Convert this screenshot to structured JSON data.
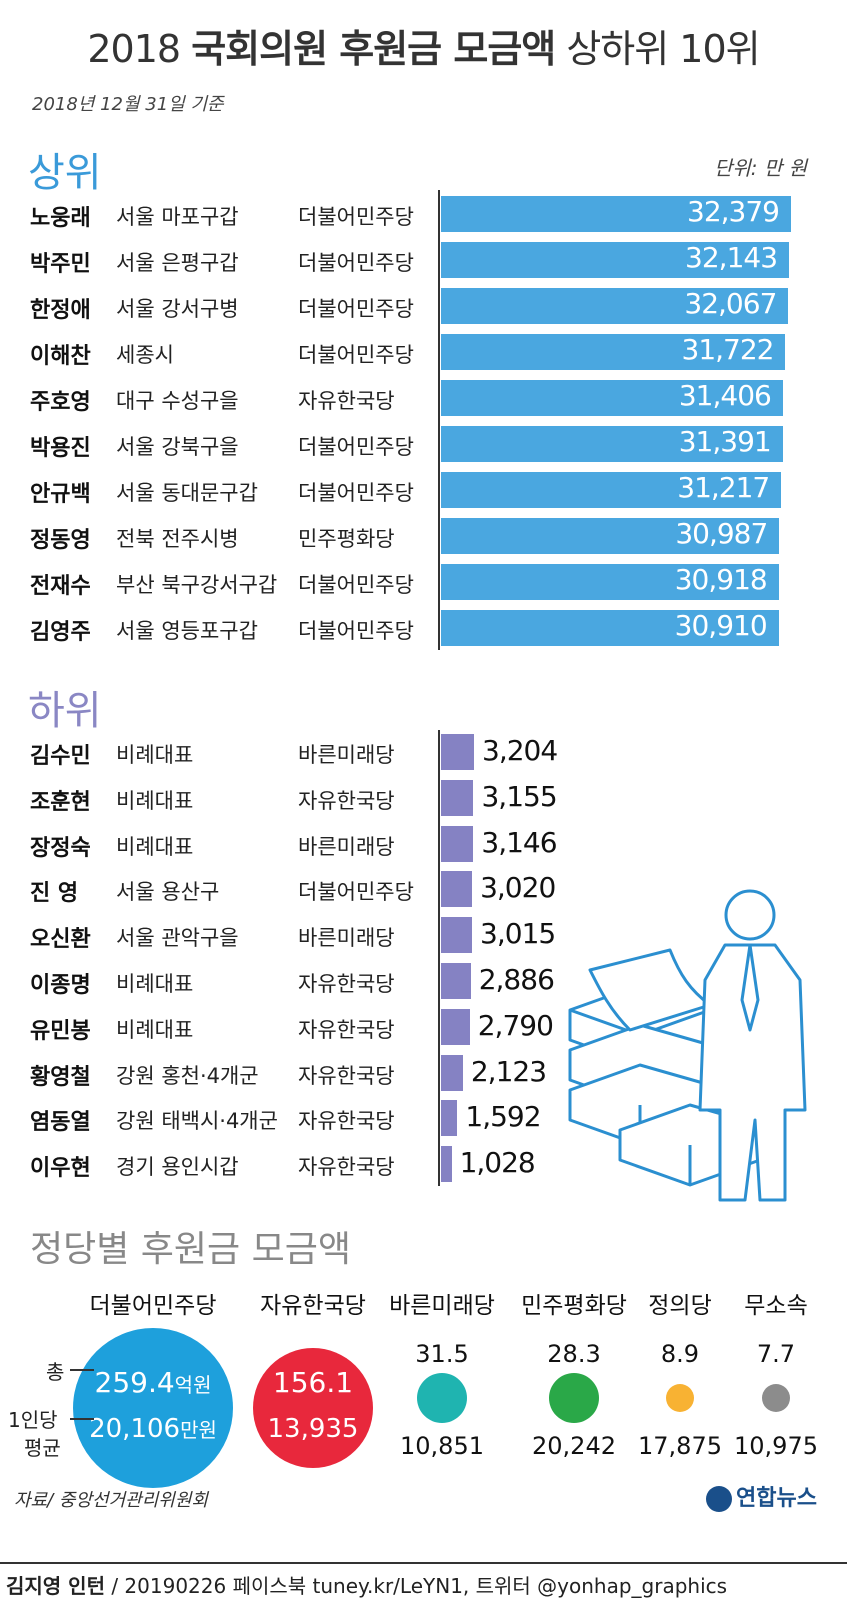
{
  "title_year": "2018",
  "title_bold": "국회의원 후원금 모금액",
  "title_rest": "상하위 10위",
  "date": "2018년 12월 31일 기준",
  "section_top": "상위",
  "section_bottom": "하위",
  "unit": "단위: 만 원",
  "section_party": "정당별 후원금 모금액",
  "source": "자료/ 중앙선거관리위원회",
  "credit_name": "김지영 인턴",
  "credit_rest": " / 20190226  페이스북 tuney.kr/LeYN1, 트위터 @yonhap_graphics",
  "logo": "연합뉴스",
  "colors": {
    "top": "#4aa7e0",
    "bottom": "#8582c3"
  },
  "chart_data": [
    {
      "type": "bar",
      "orientation": "horizontal",
      "title": "상위",
      "rows": [
        {
          "name": "노웅래",
          "district": "서울 마포구갑",
          "party": "더불어민주당",
          "value": 32379,
          "label": "32,379"
        },
        {
          "name": "박주민",
          "district": "서울 은평구갑",
          "party": "더불어민주당",
          "value": 32143,
          "label": "32,143"
        },
        {
          "name": "한정애",
          "district": "서울 강서구병",
          "party": "더불어민주당",
          "value": 32067,
          "label": "32,067"
        },
        {
          "name": "이해찬",
          "district": "세종시",
          "party": "더불어민주당",
          "value": 31722,
          "label": "31,722"
        },
        {
          "name": "주호영",
          "district": "대구 수성구을",
          "party": "자유한국당",
          "value": 31406,
          "label": "31,406"
        },
        {
          "name": "박용진",
          "district": "서울 강북구을",
          "party": "더불어민주당",
          "value": 31391,
          "label": "31,391"
        },
        {
          "name": "안규백",
          "district": "서울 동대문구갑",
          "party": "더불어민주당",
          "value": 31217,
          "label": "31,217"
        },
        {
          "name": "정동영",
          "district": "전북 전주시병",
          "party": "민주평화당",
          "value": 30987,
          "label": "30,987"
        },
        {
          "name": "전재수",
          "district": "부산 북구강서구갑",
          "party": "더불어민주당",
          "value": 30918,
          "label": "30,918"
        },
        {
          "name": "김영주",
          "district": "서울 영등포구갑",
          "party": "더불어민주당",
          "value": 30910,
          "label": "30,910"
        }
      ]
    },
    {
      "type": "bar",
      "orientation": "horizontal",
      "title": "하위",
      "rows": [
        {
          "name": "김수민",
          "district": "비례대표",
          "party": "바른미래당",
          "value": 3204,
          "label": "3,204"
        },
        {
          "name": "조훈현",
          "district": "비례대표",
          "party": "자유한국당",
          "value": 3155,
          "label": "3,155"
        },
        {
          "name": "장정숙",
          "district": "비례대표",
          "party": "바른미래당",
          "value": 3146,
          "label": "3,146"
        },
        {
          "name": "진  영",
          "district": "서울 용산구",
          "party": "더불어민주당",
          "value": 3020,
          "label": "3,020"
        },
        {
          "name": "오신환",
          "district": "서울 관악구을",
          "party": "바른미래당",
          "value": 3015,
          "label": "3,015"
        },
        {
          "name": "이종명",
          "district": "비례대표",
          "party": "자유한국당",
          "value": 2886,
          "label": "2,886"
        },
        {
          "name": "유민봉",
          "district": "비례대표",
          "party": "자유한국당",
          "value": 2790,
          "label": "2,790"
        },
        {
          "name": "황영철",
          "district": "강원 홍천·4개군",
          "party": "자유한국당",
          "value": 2123,
          "label": "2,123"
        },
        {
          "name": "염동열",
          "district": "강원 태백시·4개군",
          "party": "자유한국당",
          "value": 1592,
          "label": "1,592"
        },
        {
          "name": "이우현",
          "district": "경기 용인시갑",
          "party": "자유한국당",
          "value": 1028,
          "label": "1,028"
        }
      ]
    },
    {
      "type": "bubble",
      "title": "정당별 후원금 모금액",
      "legend_total": "총",
      "legend_avg_1": "1인당",
      "legend_avg_2": "평균",
      "total_unit": "억원",
      "avg_unit": "만원",
      "parties": [
        {
          "name": "더불어민주당",
          "total": 259.4,
          "total_label": "259.4",
          "avg": 20106,
          "avg_label": "20,106",
          "color": "#1ea0dc"
        },
        {
          "name": "자유한국당",
          "total": 156.1,
          "total_label": "156.1",
          "avg": 13935,
          "avg_label": "13,935",
          "color": "#e8283c"
        },
        {
          "name": "바른미래당",
          "total": 31.5,
          "total_label": "31.5",
          "avg": 10851,
          "avg_label": "10,851",
          "color": "#1fb4b0"
        },
        {
          "name": "민주평화당",
          "total": 28.3,
          "total_label": "28.3",
          "avg": 20242,
          "avg_label": "20,242",
          "color": "#2aa848"
        },
        {
          "name": "정의당",
          "total": 8.9,
          "total_label": "8.9",
          "avg": 17875,
          "avg_label": "17,875",
          "color": "#f8b233"
        },
        {
          "name": "무소속",
          "total": 7.7,
          "total_label": "7.7",
          "avg": 10975,
          "avg_label": "10,975",
          "color": "#8c8c8c"
        }
      ]
    }
  ]
}
